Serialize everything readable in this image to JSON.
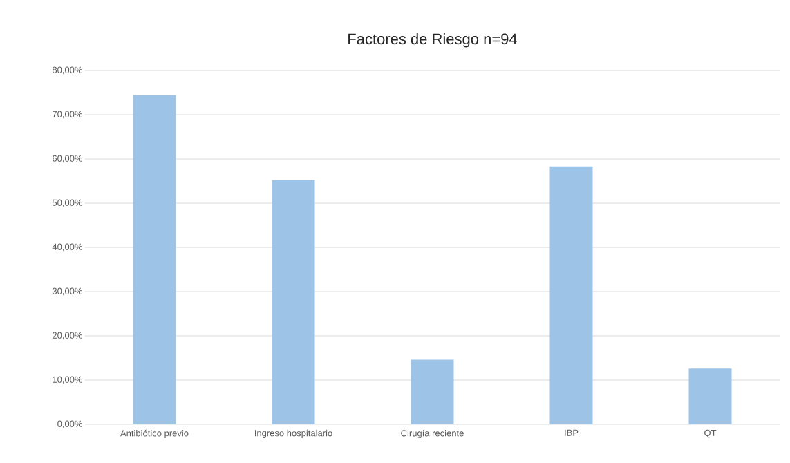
{
  "chart_data": {
    "type": "bar",
    "title": "Factores de Riesgo n=94",
    "categories": [
      "Antibiótico previo",
      "Ingreso hospitalario",
      "Cirugía reciente",
      "IBP",
      "QT"
    ],
    "values": [
      74.4,
      55.2,
      14.6,
      58.3,
      12.6
    ],
    "color": "#9dc3e6",
    "ylim": [
      0,
      80
    ],
    "yticks": [
      {
        "value": 0,
        "label": "0,00%"
      },
      {
        "value": 10,
        "label": "10,00%"
      },
      {
        "value": 20,
        "label": "20,00%"
      },
      {
        "value": 30,
        "label": "30,00%"
      },
      {
        "value": 40,
        "label": "40,00%"
      },
      {
        "value": 50,
        "label": "50,00%"
      },
      {
        "value": 60,
        "label": "60,00%"
      },
      {
        "value": 70,
        "label": "70,00%"
      },
      {
        "value": 80,
        "label": "80,00%"
      }
    ],
    "grid": "y"
  }
}
